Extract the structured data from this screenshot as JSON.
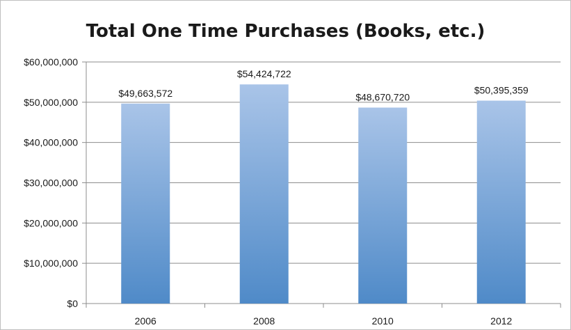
{
  "chart_data": {
    "type": "bar",
    "title": "Total One Time Purchases (Books, etc.)",
    "categories": [
      "2006",
      "2008",
      "2010",
      "2012"
    ],
    "values": [
      49663572,
      54424722,
      48670720,
      50395359
    ],
    "data_labels": [
      "$49,663,572",
      "$54,424,722",
      "$48,670,720",
      "$50,395,359"
    ],
    "ylim": [
      0,
      60000000
    ],
    "yticks": [
      0,
      10000000,
      20000000,
      30000000,
      40000000,
      50000000,
      60000000
    ],
    "ytick_labels": [
      "$0",
      "$10,000,000",
      "$20,000,000",
      "$30,000,000",
      "$40,000,000",
      "$50,000,000",
      "$60,000,000"
    ],
    "grid": true,
    "legend": "none",
    "colors": {
      "bar_top": "#a9c4e8",
      "bar_bottom": "#4f8ac8",
      "grid": "#8c8c8c",
      "axis": "#8c8c8c"
    }
  }
}
